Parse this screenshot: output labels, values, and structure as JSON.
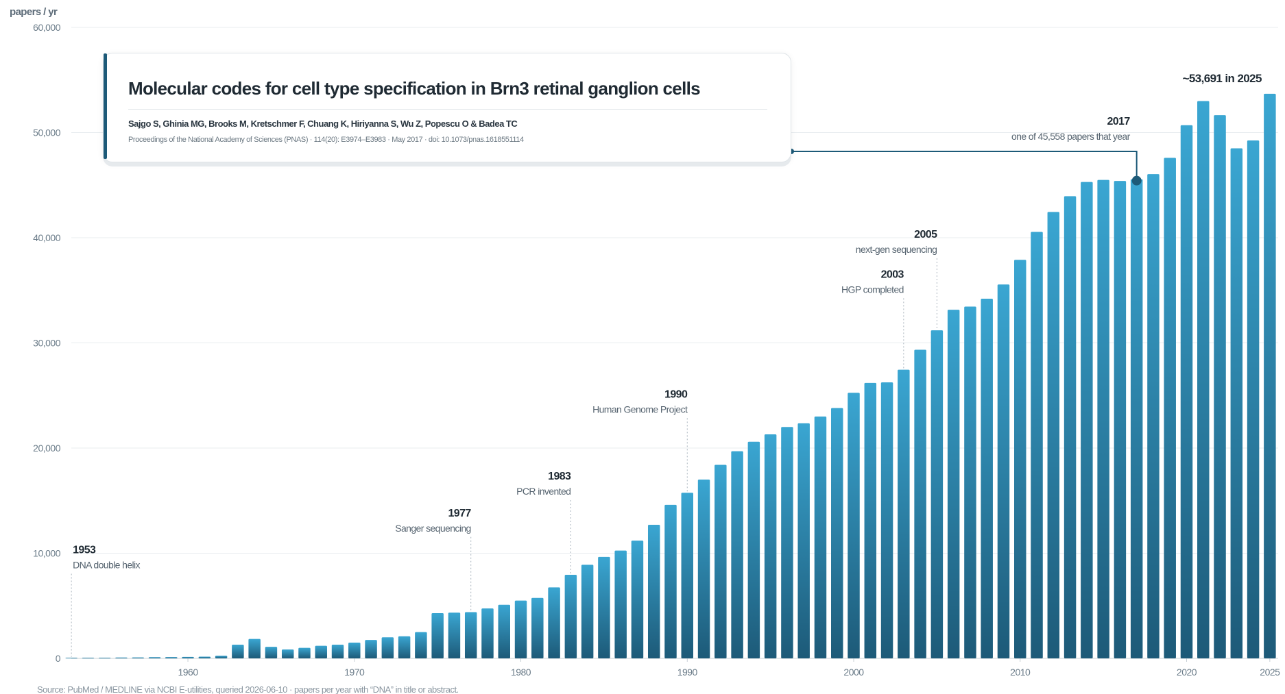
{
  "chart_data": {
    "type": "bar",
    "ylabel": "papers / yr",
    "ylim": [
      0,
      60000
    ],
    "yticks": [
      0,
      10000,
      20000,
      30000,
      40000,
      50000,
      60000
    ],
    "ytick_labels": [
      "0",
      "10,000",
      "20,000",
      "30,000",
      "40,000",
      "50,000",
      "60,000"
    ],
    "xlim": [
      1952.5,
      2025.5
    ],
    "xticks": [
      1960,
      1970,
      1980,
      1990,
      2000,
      2010,
      2020,
      2025
    ],
    "xtick_labels": [
      "1960",
      "1970",
      "1980",
      "1990",
      "2000",
      "2010",
      "2020",
      "2025"
    ],
    "grid": true,
    "bar_color_top": "#3aa6d2",
    "bar_color_bottom": "#1d5a78",
    "x": [
      1953,
      1954,
      1955,
      1956,
      1957,
      1958,
      1959,
      1960,
      1961,
      1962,
      1963,
      1964,
      1965,
      1966,
      1967,
      1968,
      1969,
      1970,
      1971,
      1972,
      1973,
      1974,
      1975,
      1976,
      1977,
      1978,
      1979,
      1980,
      1981,
      1982,
      1983,
      1984,
      1985,
      1986,
      1987,
      1988,
      1989,
      1990,
      1991,
      1992,
      1993,
      1994,
      1995,
      1996,
      1997,
      1998,
      1999,
      2000,
      2001,
      2002,
      2003,
      2004,
      2005,
      2006,
      2007,
      2008,
      2009,
      2010,
      2011,
      2012,
      2013,
      2014,
      2015,
      2016,
      2017,
      2018,
      2019,
      2020,
      2021,
      2022,
      2023,
      2024,
      2025
    ],
    "values": [
      20,
      40,
      60,
      80,
      90,
      110,
      120,
      140,
      160,
      250,
      1300,
      1850,
      1100,
      850,
      1000,
      1200,
      1300,
      1500,
      1750,
      2000,
      2100,
      2500,
      4300,
      4350,
      4400,
      4750,
      5100,
      5500,
      5750,
      6750,
      7950,
      8900,
      9650,
      10250,
      11200,
      12700,
      14600,
      15750,
      17000,
      18400,
      19700,
      20600,
      21300,
      22000,
      22350,
      23000,
      23800,
      25250,
      26200,
      26250,
      27450,
      29350,
      31200,
      33150,
      33450,
      34200,
      35550,
      37900,
      40550,
      42450,
      43950,
      45300,
      45500,
      45400,
      45558,
      46050,
      47600,
      50700,
      53000,
      51650,
      48500,
      49250,
      53691
    ],
    "annotations": [
      {
        "year": 1953,
        "label": "1953",
        "text": "DNA double helix",
        "level": 10000
      },
      {
        "year": 1977,
        "label": "1977",
        "text": "Sanger sequencing",
        "level": 13500
      },
      {
        "year": 1983,
        "label": "1983",
        "text": "PCR invented",
        "level": 17000
      },
      {
        "year": 1990,
        "label": "1990",
        "text": "Human Genome Project",
        "level": 24800
      },
      {
        "year": 2003,
        "label": "2003",
        "text": "HGP completed",
        "level": 36200
      },
      {
        "year": 2005,
        "label": "2005",
        "text": "next-gen sequencing",
        "level": 40000
      }
    ],
    "highlight": {
      "year": 2017,
      "label": "2017",
      "text": "one of 45,558 papers that year",
      "value": 45558
    },
    "latest_callout": "~53,691 in 2025"
  },
  "paper": {
    "title": "Molecular codes for cell type specification in Brn3 retinal ganglion cells",
    "authors": "Sajgo S, Ghinia MG, Brooks M, Kretschmer F, Chuang K, Hiriyanna S, Wu Z, Popescu O & Badea TC",
    "citation": "Proceedings of the National Academy of Sciences (PNAS) · 114(20): E3974–E3983 · May 2017 · doi: 10.1073/pnas.1618551114"
  },
  "source_note": "Source: PubMed / MEDLINE via NCBI E-utilities, queried 2026-06-10 · papers per year with “DNA” in title or abstract."
}
